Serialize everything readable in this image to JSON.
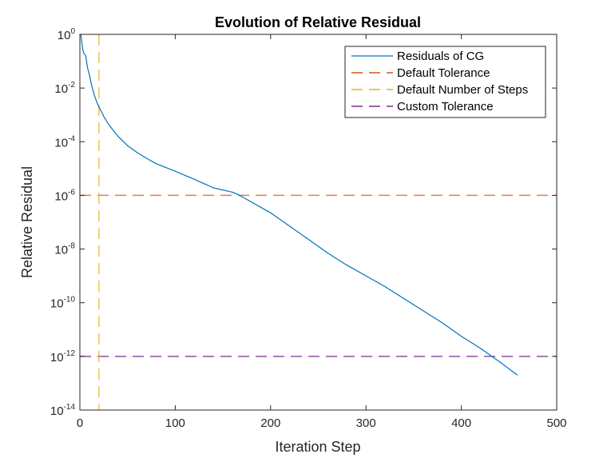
{
  "chart_data": {
    "type": "line",
    "title": "Evolution of Relative Residual",
    "xlabel": "Iteration Step",
    "ylabel": "Relative Residual",
    "xlim": [
      0,
      500
    ],
    "ylim_log10": [
      -14,
      0
    ],
    "yscale": "log",
    "grid": false,
    "legend_position": "top-right",
    "x_ticks": [
      {
        "value": 0,
        "label": "0"
      },
      {
        "value": 100,
        "label": "100"
      },
      {
        "value": 200,
        "label": "200"
      },
      {
        "value": 300,
        "label": "300"
      },
      {
        "value": 400,
        "label": "400"
      },
      {
        "value": 500,
        "label": "500"
      }
    ],
    "y_ticks": [
      {
        "exp_value": 0,
        "base": "10",
        "exp": "0"
      },
      {
        "exp_value": -2,
        "base": "10",
        "exp": "-2"
      },
      {
        "exp_value": -4,
        "base": "10",
        "exp": "-4"
      },
      {
        "exp_value": -6,
        "base": "10",
        "exp": "-6"
      },
      {
        "exp_value": -8,
        "base": "10",
        "exp": "-8"
      },
      {
        "exp_value": -10,
        "base": "10",
        "exp": "-10"
      },
      {
        "exp_value": -12,
        "base": "10",
        "exp": "-12"
      },
      {
        "exp_value": -14,
        "base": "10",
        "exp": "-14"
      }
    ],
    "series": [
      {
        "name": "Residuals of CG",
        "style": "solid",
        "color": "#0072BD",
        "x": [
          1,
          2,
          3,
          4,
          5,
          6,
          8,
          10,
          12,
          15,
          18,
          20,
          25,
          30,
          40,
          50,
          60,
          70,
          80,
          100,
          120,
          140,
          160,
          165,
          170,
          180,
          200,
          220,
          240,
          260,
          280,
          300,
          320,
          340,
          360,
          380,
          400,
          420,
          440,
          459
        ],
        "log10_y": [
          0,
          -0.3,
          -0.55,
          -0.7,
          -0.75,
          -0.78,
          -1.25,
          -1.5,
          -1.85,
          -2.25,
          -2.55,
          -2.7,
          -3.05,
          -3.35,
          -3.8,
          -4.15,
          -4.4,
          -4.62,
          -4.82,
          -5.1,
          -5.4,
          -5.72,
          -5.88,
          -5.95,
          -6.05,
          -6.25,
          -6.65,
          -7.15,
          -7.65,
          -8.15,
          -8.6,
          -9.0,
          -9.4,
          -9.85,
          -10.3,
          -10.75,
          -11.25,
          -11.7,
          -12.2,
          -12.7
        ]
      },
      {
        "name": "Default Tolerance",
        "style": "dashed",
        "color": "#D95319",
        "orientation": "horizontal",
        "log10_y": -6
      },
      {
        "name": "Default Number of Steps",
        "style": "dashed",
        "color": "#EDB120",
        "orientation": "vertical",
        "x": 20
      },
      {
        "name": "Custom Tolerance",
        "style": "dashed",
        "color": "#7E2F8E",
        "orientation": "horizontal",
        "log10_y": -12
      }
    ]
  }
}
